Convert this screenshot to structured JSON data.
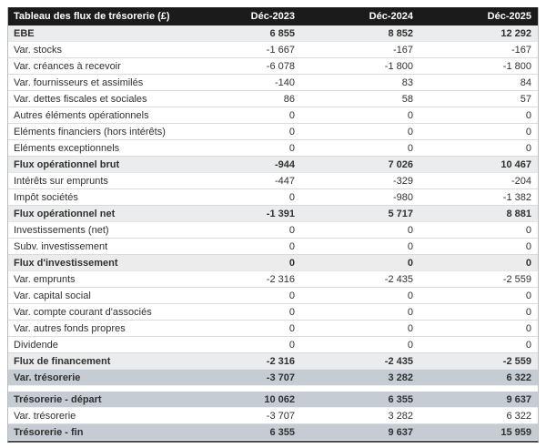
{
  "chart_data": {
    "type": "table",
    "title": "Tableau des flux de trésorerie (£)",
    "columns": [
      "Déc-2023",
      "Déc-2024",
      "Déc-2025"
    ],
    "rows": [
      {
        "label": "EBE",
        "values": [
          "6 855",
          "8 852",
          "12 292"
        ],
        "style": "subtotal"
      },
      {
        "label": "Var. stocks",
        "values": [
          "-1 667",
          "-167",
          "-167"
        ],
        "style": "normal"
      },
      {
        "label": "Var. créances à recevoir",
        "values": [
          "-6 078",
          "-1 800",
          "-1 800"
        ],
        "style": "normal"
      },
      {
        "label": "Var. fournisseurs et assimilés",
        "values": [
          "-140",
          "83",
          "84"
        ],
        "style": "normal"
      },
      {
        "label": "Var. dettes fiscales et sociales",
        "values": [
          "86",
          "58",
          "57"
        ],
        "style": "normal"
      },
      {
        "label": "Autres éléments opérationnels",
        "values": [
          "0",
          "0",
          "0"
        ],
        "style": "normal"
      },
      {
        "label": "Eléments financiers (hors intérêts)",
        "values": [
          "0",
          "0",
          "0"
        ],
        "style": "normal"
      },
      {
        "label": "Eléments exceptionnels",
        "values": [
          "0",
          "0",
          "0"
        ],
        "style": "normal"
      },
      {
        "label": "Flux opérationnel brut",
        "values": [
          "-944",
          "7 026",
          "10 467"
        ],
        "style": "subtotal"
      },
      {
        "label": "Intérêts sur emprunts",
        "values": [
          "-447",
          "-329",
          "-204"
        ],
        "style": "normal"
      },
      {
        "label": "Impôt sociétés",
        "values": [
          "0",
          "-980",
          "-1 382"
        ],
        "style": "normal"
      },
      {
        "label": "Flux opérationnel net",
        "values": [
          "-1 391",
          "5 717",
          "8 881"
        ],
        "style": "subtotal"
      },
      {
        "label": "Investissements (net)",
        "values": [
          "0",
          "0",
          "0"
        ],
        "style": "normal"
      },
      {
        "label": "Subv. investissement",
        "values": [
          "0",
          "0",
          "0"
        ],
        "style": "normal"
      },
      {
        "label": "Flux d'investissement",
        "values": [
          "0",
          "0",
          "0"
        ],
        "style": "subtotal"
      },
      {
        "label": "Var. emprunts",
        "values": [
          "-2 316",
          "-2 435",
          "-2 559"
        ],
        "style": "normal"
      },
      {
        "label": "Var. capital social",
        "values": [
          "0",
          "0",
          "0"
        ],
        "style": "normal"
      },
      {
        "label": "Var. compte courant d'associés",
        "values": [
          "0",
          "0",
          "0"
        ],
        "style": "normal"
      },
      {
        "label": "Var. autres fonds propres",
        "values": [
          "0",
          "0",
          "0"
        ],
        "style": "normal"
      },
      {
        "label": "Dividende",
        "values": [
          "0",
          "0",
          "0"
        ],
        "style": "normal"
      },
      {
        "label": "Flux de financement",
        "values": [
          "-2 316",
          "-2 435",
          "-2 559"
        ],
        "style": "subtotal"
      },
      {
        "label": "Var. trésorerie",
        "values": [
          "-3 707",
          "3 282",
          "6 322"
        ],
        "style": "highlight"
      },
      {
        "style": "spacer"
      },
      {
        "label": "Trésorerie - départ",
        "values": [
          "10 062",
          "6 355",
          "9 637"
        ],
        "style": "highlight"
      },
      {
        "label": "Var. trésorerie",
        "values": [
          "-3 707",
          "3 282",
          "6 322"
        ],
        "style": "normal"
      },
      {
        "label": "Trésorerie - fin",
        "values": [
          "6 355",
          "9 637",
          "15 959"
        ],
        "style": "highlight"
      }
    ]
  },
  "theme": {
    "header_bg": "#1b1b1b",
    "header_text": "#ffffff",
    "subtotal_bg": "#ebeced",
    "highlight_bg": "#c6ccd3",
    "row_text": "#303030",
    "row_border": "#dbdbdb",
    "side_border": "#b9bcbe",
    "bottom_border": "#4a4a4a",
    "page_bg": "#ffffff"
  }
}
